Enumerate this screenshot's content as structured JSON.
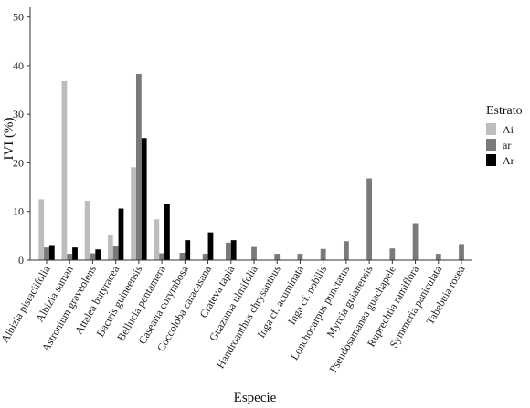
{
  "chart_data": {
    "type": "bar",
    "xlabel": "Especie",
    "ylabel": "IVI (%)",
    "ylim": [
      0,
      52
    ],
    "yticks": [
      0,
      10,
      20,
      30,
      40,
      50
    ],
    "grid": false,
    "legend_position": "right",
    "legend_title": "Estrato",
    "categories": [
      "Albizia pistaciifolia",
      "Albizia saman",
      "Astronium graveolens",
      "Attalea butyracea",
      "Bactris guineensis",
      "Bellucia pentamera",
      "Casearia corymbosa",
      "Coccoloba caracasana",
      "Crateva tapia",
      "Guazuma ulmifolia",
      "Handroanthus chrysanthus",
      "Inga cf. acuminata",
      "Inga cf. nobilis",
      "Lonchocarpus punctatus",
      "Myrcia guianensis",
      "Pseudosamanea guachapele",
      "Ruprechtia ramiflora",
      "Symmeria paniculata",
      "Tabebuia rosea"
    ],
    "series": [
      {
        "name": "Ai",
        "color": "#bdbdbd",
        "values": [
          12.5,
          36.8,
          12.2,
          5.1,
          19.1,
          8.4,
          null,
          null,
          null,
          null,
          null,
          null,
          null,
          null,
          null,
          null,
          null,
          null,
          null
        ]
      },
      {
        "name": "ar",
        "color": "#7a7a7a",
        "values": [
          2.6,
          1.3,
          1.4,
          2.9,
          38.3,
          1.4,
          1.5,
          1.3,
          3.6,
          2.7,
          1.3,
          1.3,
          2.3,
          3.9,
          16.8,
          2.4,
          7.6,
          1.3,
          3.3
        ]
      },
      {
        "name": "Ar",
        "color": "#000000",
        "values": [
          3.1,
          2.6,
          2.2,
          10.6,
          25.1,
          11.5,
          4.1,
          5.7,
          4.1,
          null,
          null,
          null,
          null,
          null,
          null,
          null,
          null,
          null,
          null
        ]
      }
    ]
  }
}
